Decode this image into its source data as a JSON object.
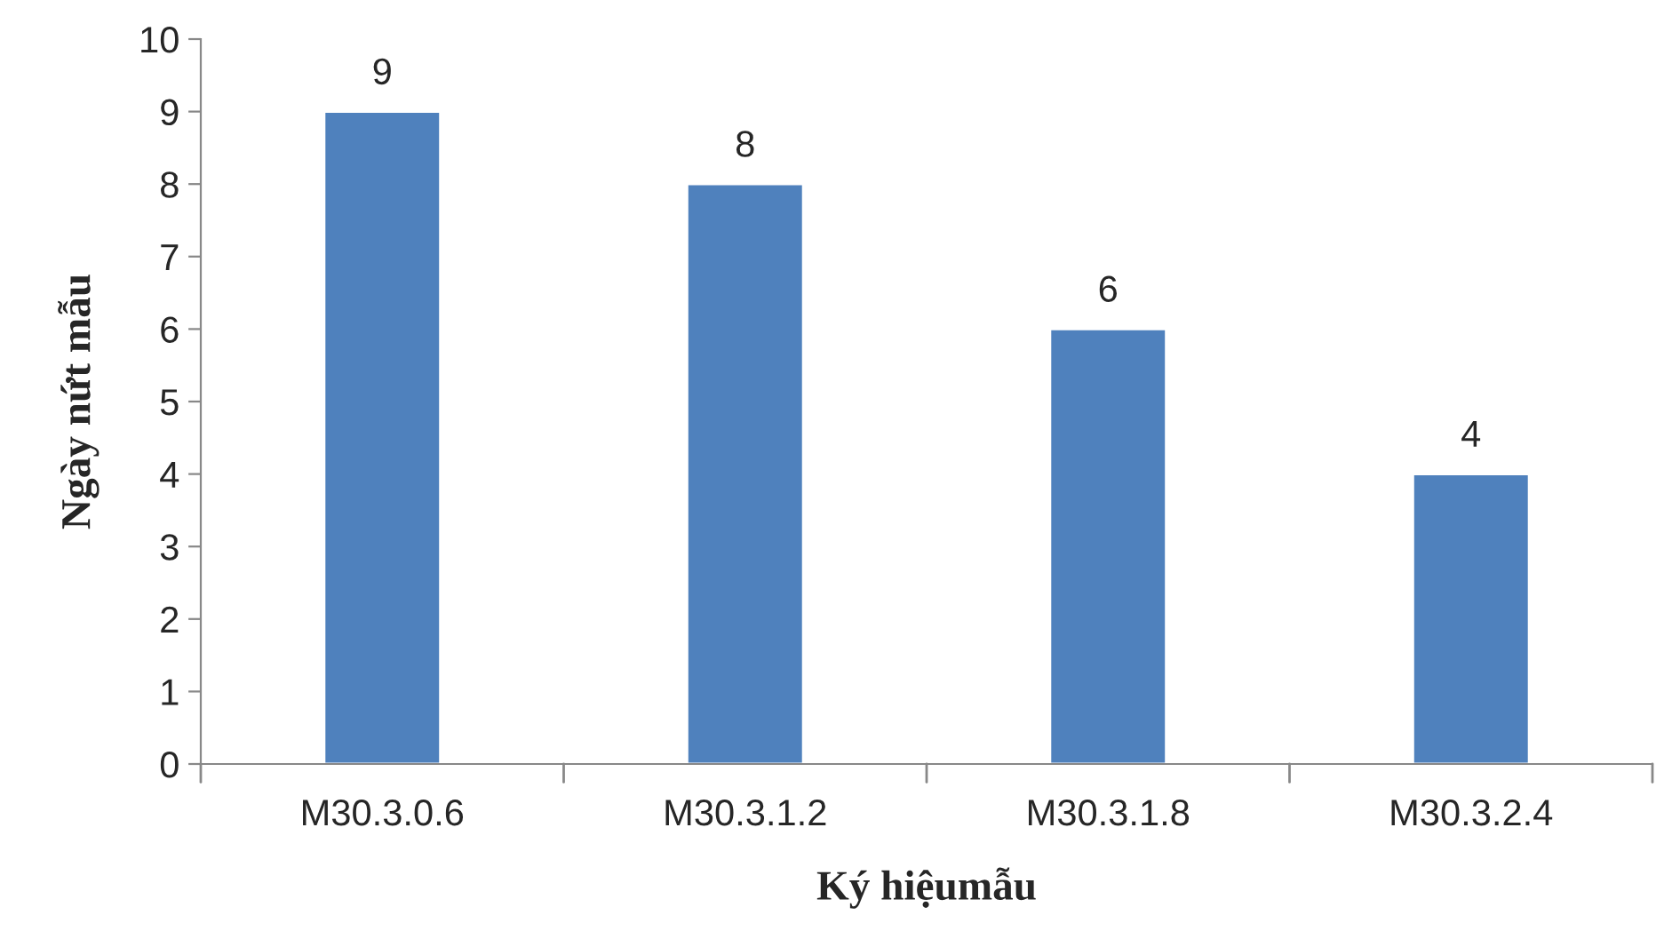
{
  "chart_data": {
    "type": "bar",
    "xlabel": "Ký hiệumẫu",
    "ylabel": "Ngày nứt mẫu",
    "categories": [
      "M30.3.0.6",
      "M30.3.1.2",
      "M30.3.1.8",
      "M30.3.2.4"
    ],
    "values": [
      9,
      8,
      6,
      4
    ],
    "color": "#4f81bd",
    "ylim": [
      0,
      10
    ],
    "yticks": [
      0,
      1,
      2,
      3,
      4,
      5,
      6,
      7,
      8,
      9,
      10
    ],
    "data_labels": true,
    "grid": false,
    "legend": false
  }
}
